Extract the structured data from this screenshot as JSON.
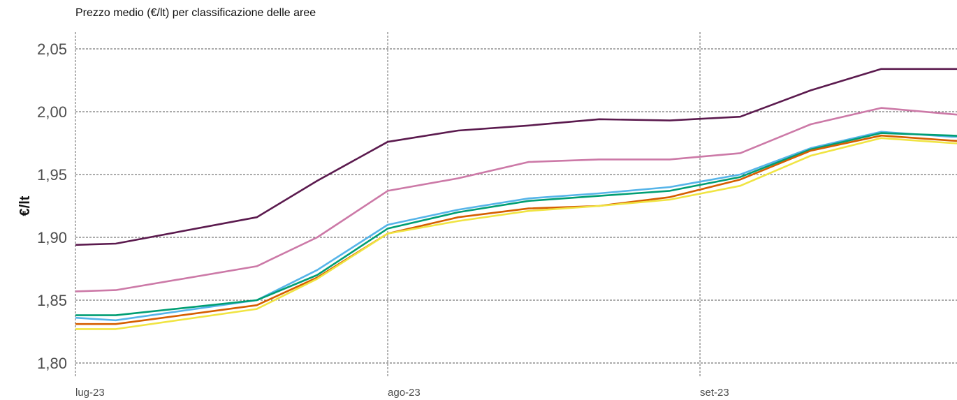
{
  "chart_data": {
    "type": "line",
    "title": "Prezzo medio (€/lt) per classificazione delle aree",
    "xlabel": "",
    "ylabel": "€/lt",
    "ylim": [
      1.79,
      2.06
    ],
    "yticks": [
      1.8,
      1.85,
      1.9,
      1.95,
      2.0,
      2.05
    ],
    "ytick_labels": [
      "1,80",
      "1,85",
      "1,90",
      "1,95",
      "2,00",
      "2,05"
    ],
    "x_dates": [
      "2023-07-01",
      "2023-07-05",
      "2023-07-19",
      "2023-07-25",
      "2023-08-01",
      "2023-08-08",
      "2023-08-15",
      "2023-08-22",
      "2023-08-29",
      "2023-09-05",
      "2023-09-12",
      "2023-09-19",
      "2023-09-26",
      "2023-10-01"
    ],
    "xticks": [
      {
        "date": "2023-07-01",
        "label": "lug-23"
      },
      {
        "date": "2023-08-01",
        "label": "ago-23"
      },
      {
        "date": "2023-09-01",
        "label": "set-23"
      }
    ],
    "grid": true,
    "series": [
      {
        "color": "#5b1a4e",
        "values": [
          1.894,
          1.895,
          1.916,
          1.945,
          1.976,
          1.985,
          1.989,
          1.994,
          1.993,
          1.996,
          2.017,
          2.034,
          2.034,
          2.034
        ]
      },
      {
        "color": "#cc79a7",
        "values": [
          1.857,
          1.858,
          1.877,
          1.9,
          1.937,
          1.947,
          1.96,
          1.962,
          1.962,
          1.967,
          1.99,
          2.003,
          1.998,
          1.995
        ]
      },
      {
        "color": "#56b4e9",
        "values": [
          1.836,
          1.834,
          1.85,
          1.874,
          1.91,
          1.922,
          1.931,
          1.935,
          1.94,
          1.95,
          1.971,
          1.984,
          1.98,
          1.98
        ]
      },
      {
        "color": "#009e73",
        "values": [
          1.838,
          1.838,
          1.85,
          1.87,
          1.907,
          1.92,
          1.929,
          1.933,
          1.937,
          1.948,
          1.97,
          1.983,
          1.981,
          1.979
        ]
      },
      {
        "color": "#d55e00",
        "values": [
          1.831,
          1.831,
          1.846,
          1.868,
          1.903,
          1.916,
          1.923,
          1.925,
          1.932,
          1.946,
          1.969,
          1.981,
          1.977,
          1.975
        ]
      },
      {
        "color": "#f0e442",
        "values": [
          1.827,
          1.827,
          1.843,
          1.867,
          1.903,
          1.913,
          1.921,
          1.925,
          1.93,
          1.941,
          1.965,
          1.979,
          1.975,
          1.973
        ]
      }
    ]
  }
}
